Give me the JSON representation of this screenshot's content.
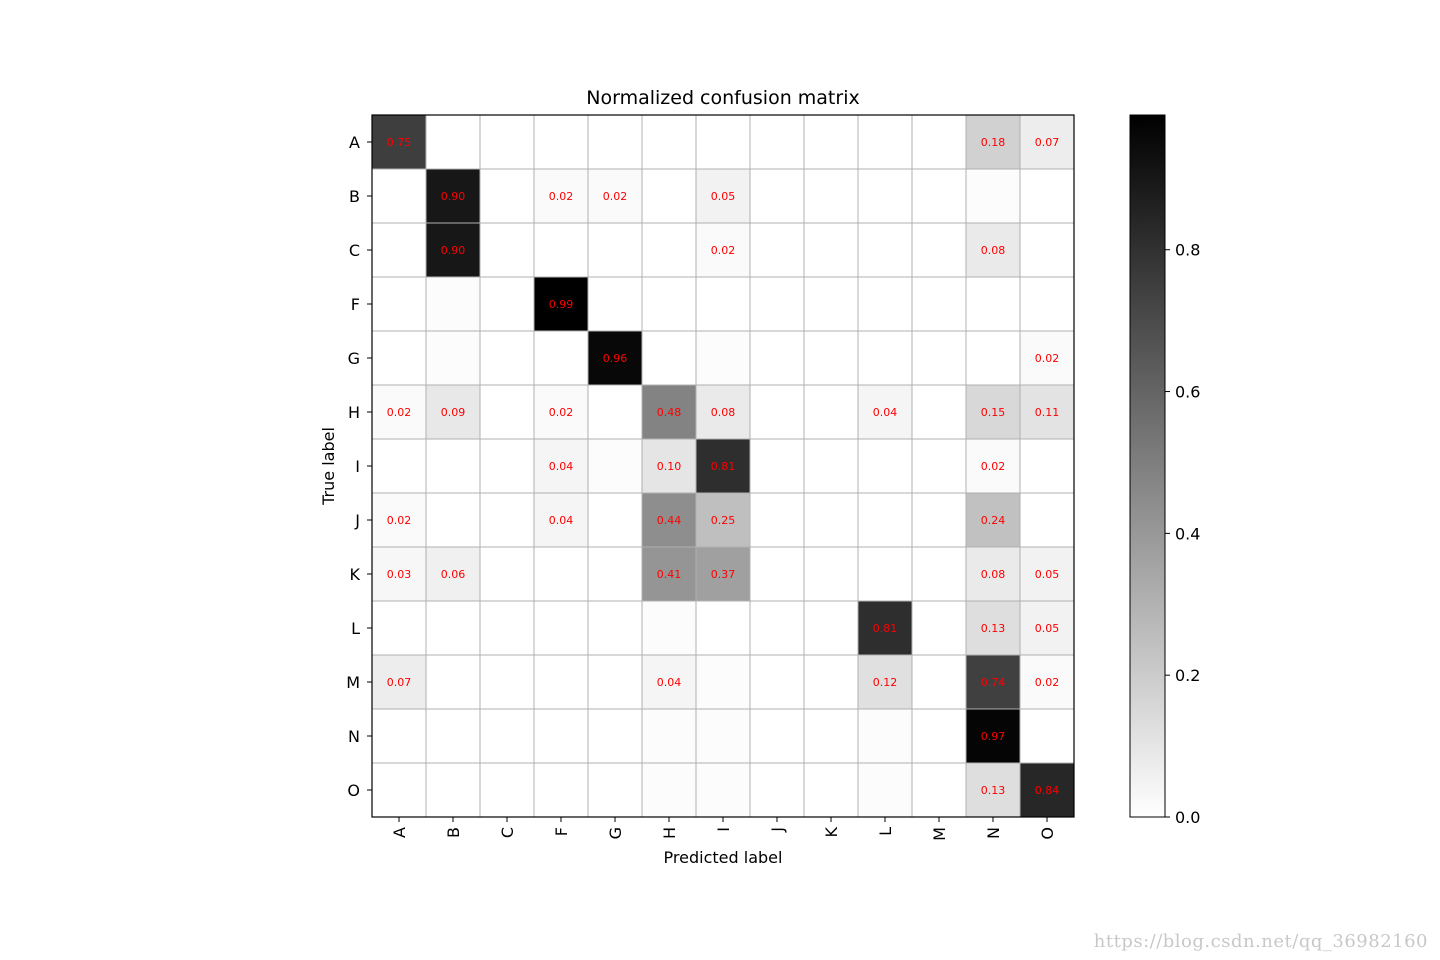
{
  "chart_data": {
    "type": "heatmap",
    "title": "Normalized confusion matrix",
    "xlabel": "Predicted label",
    "ylabel": "True label",
    "row_labels": [
      "A",
      "B",
      "C",
      "F",
      "G",
      "H",
      "I",
      "J",
      "K",
      "L",
      "M",
      "N",
      "O"
    ],
    "col_labels": [
      "A",
      "B",
      "C",
      "F",
      "G",
      "H",
      "I",
      "J",
      "K",
      "L",
      "M",
      "N",
      "O"
    ],
    "values": [
      [
        0.75,
        0,
        0,
        0,
        0,
        0,
        0,
        0,
        0,
        0,
        0,
        0.18,
        0.07
      ],
      [
        0,
        0.9,
        0,
        0.02,
        0.02,
        0,
        0.05,
        0,
        0,
        0,
        0,
        0.01,
        0
      ],
      [
        0,
        0.9,
        0,
        0,
        0,
        0,
        0.02,
        0,
        0,
        0,
        0,
        0.08,
        0
      ],
      [
        0,
        0.01,
        0,
        0.99,
        0,
        0,
        0,
        0,
        0,
        0,
        0,
        0,
        0
      ],
      [
        0,
        0.01,
        0,
        0,
        0.96,
        0,
        0.01,
        0,
        0,
        0,
        0,
        0,
        0.02
      ],
      [
        0.02,
        0.09,
        0,
        0.02,
        0,
        0.48,
        0.08,
        0,
        0,
        0.04,
        0,
        0.15,
        0.11
      ],
      [
        0,
        0,
        0,
        0.04,
        0.01,
        0.1,
        0.81,
        0,
        0,
        0,
        0,
        0.02,
        0
      ],
      [
        0.02,
        0,
        0,
        0.04,
        0,
        0.44,
        0.25,
        0,
        0,
        0,
        0,
        0.24,
        0
      ],
      [
        0.03,
        0.06,
        0,
        0,
        0,
        0.41,
        0.37,
        0,
        0,
        0,
        0,
        0.08,
        0.05
      ],
      [
        0,
        0,
        0,
        0,
        0,
        0.01,
        0,
        0,
        0,
        0.81,
        0,
        0.13,
        0.05
      ],
      [
        0.07,
        0,
        0,
        0,
        0,
        0.04,
        0.01,
        0,
        0,
        0.12,
        0,
        0.74,
        0.02
      ],
      [
        0,
        0,
        0,
        0,
        0,
        0.01,
        0.01,
        0,
        0,
        0.01,
        0,
        0.97,
        0
      ],
      [
        0,
        0,
        0,
        0,
        0,
        0.01,
        0.01,
        0,
        0,
        0.01,
        0,
        0.13,
        0.84
      ]
    ],
    "labels_shown": [
      [
        "0.75",
        "",
        "",
        "",
        "",
        "",
        "",
        "",
        "",
        "",
        "",
        "0.18",
        "0.07"
      ],
      [
        "",
        "0.90",
        "",
        "0.02",
        "0.02",
        "",
        "0.05",
        "",
        "",
        "",
        "",
        "",
        ""
      ],
      [
        "",
        "0.90",
        "",
        "",
        "",
        "",
        "0.02",
        "",
        "",
        "",
        "",
        "0.08",
        ""
      ],
      [
        "",
        "",
        "",
        "0.99",
        "",
        "",
        "",
        "",
        "",
        "",
        "",
        "",
        ""
      ],
      [
        "",
        "",
        "",
        "",
        "0.96",
        "",
        "",
        "",
        "",
        "",
        "",
        "",
        "0.02"
      ],
      [
        "0.02",
        "0.09",
        "",
        "0.02",
        "",
        "0.48",
        "0.08",
        "",
        "",
        "0.04",
        "",
        "0.15",
        "0.11"
      ],
      [
        "",
        "",
        "",
        "0.04",
        "",
        "0.10",
        "0.81",
        "",
        "",
        "",
        "",
        "0.02",
        ""
      ],
      [
        "0.02",
        "",
        "",
        "0.04",
        "",
        "0.44",
        "0.25",
        "",
        "",
        "",
        "",
        "0.24",
        ""
      ],
      [
        "0.03",
        "0.06",
        "",
        "",
        "",
        "0.41",
        "0.37",
        "",
        "",
        "",
        "",
        "0.08",
        "0.05"
      ],
      [
        "",
        "",
        "",
        "",
        "",
        "",
        "",
        "",
        "",
        "0.81",
        "",
        "0.13",
        "0.05"
      ],
      [
        "0.07",
        "",
        "",
        "",
        "",
        "0.04",
        "",
        "",
        "",
        "0.12",
        "",
        "0.74",
        "0.02"
      ],
      [
        "",
        "",
        "",
        "",
        "",
        "",
        "",
        "",
        "",
        "",
        "",
        "0.97",
        ""
      ],
      [
        "",
        "",
        "",
        "",
        "",
        "",
        "",
        "",
        "",
        "",
        "",
        "0.13",
        "0.84"
      ]
    ],
    "colorbar": {
      "min": 0.0,
      "max": 0.99,
      "ticks": [
        0.0,
        0.2,
        0.4,
        0.6,
        0.8
      ],
      "tick_labels": [
        "0.0",
        "0.2",
        "0.4",
        "0.6",
        "0.8"
      ]
    },
    "colormap": "grey-white-to-black",
    "label_color": "#ff0000",
    "grid_color": "#b0b0b0",
    "grid": true
  },
  "watermark": "https://blog.csdn.net/qq_36982160"
}
